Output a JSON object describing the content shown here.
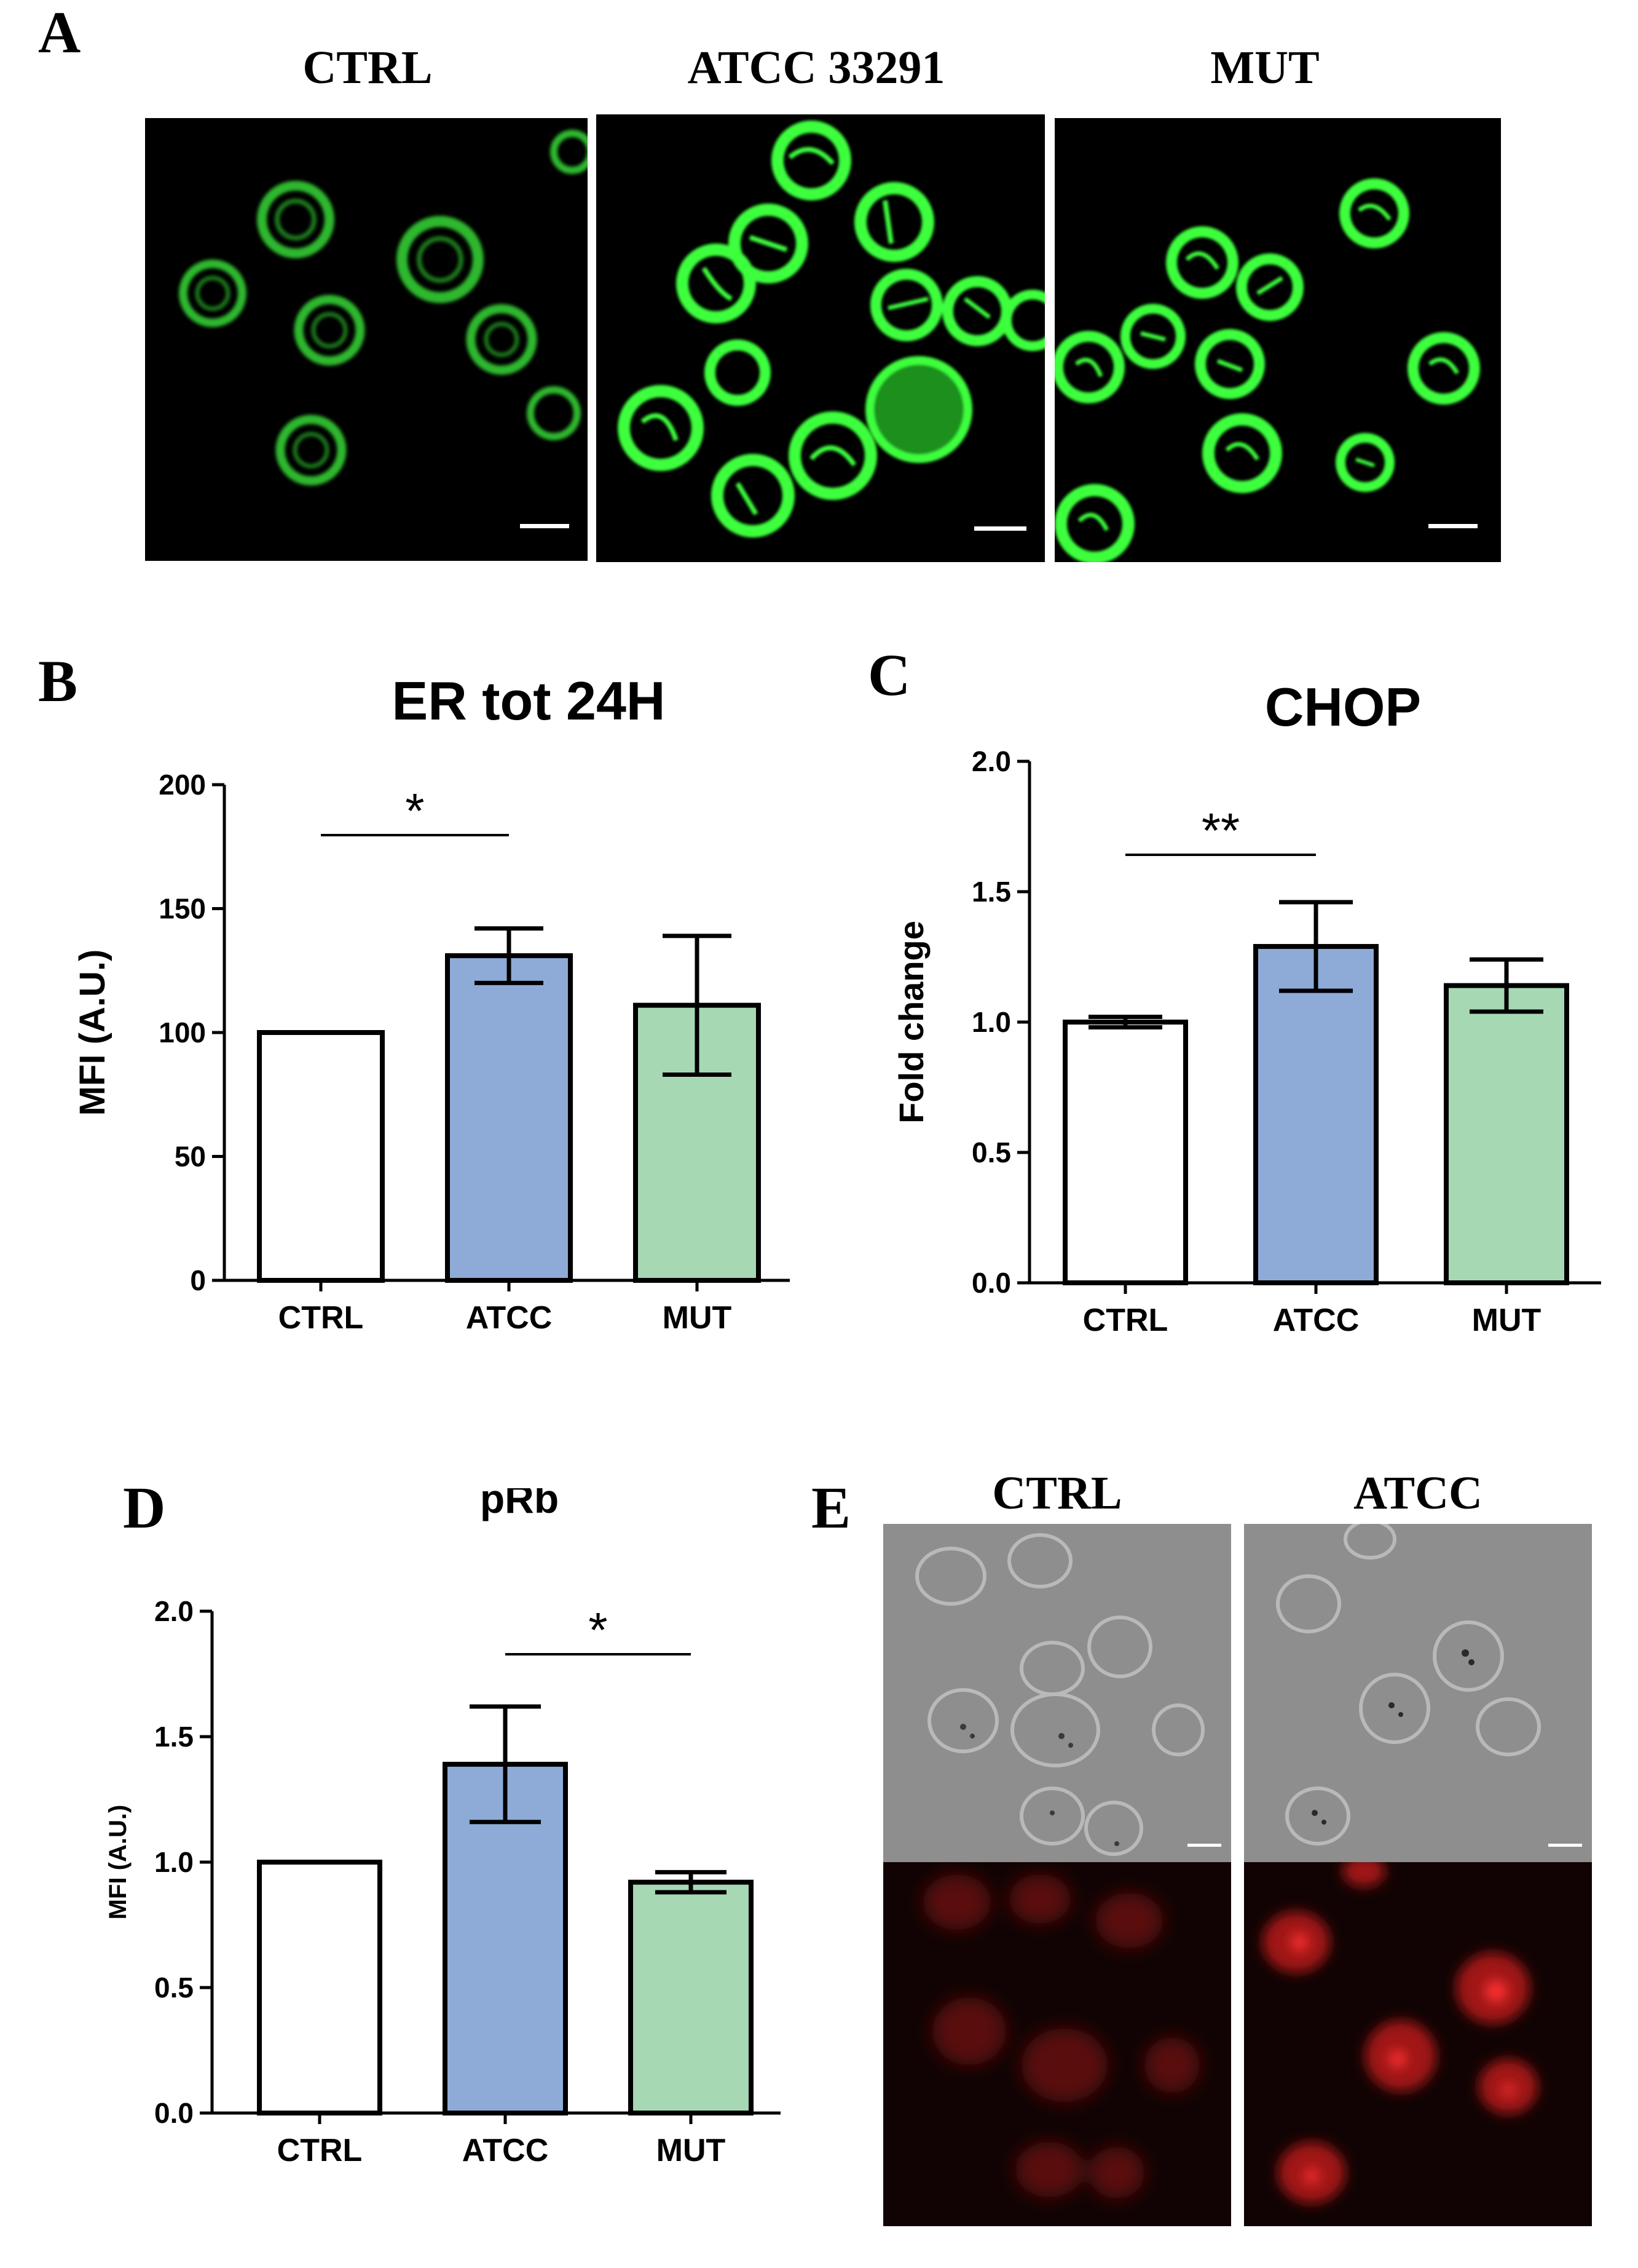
{
  "panel_letters": {
    "a": "A",
    "b": "B",
    "c": "C",
    "d": "D",
    "e": "E"
  },
  "panel_a": {
    "labels": [
      "CTRL",
      "ATCC 33291",
      "MUT"
    ],
    "stain_color": "#3cff3c",
    "background_color": "#000000"
  },
  "panel_e": {
    "labels": [
      "CTRL",
      "ATCC"
    ],
    "brightfield_color": "#8e8e8e",
    "fluorescence_color": "#c01010"
  },
  "colors": {
    "ctrl": "#ffffff",
    "atcc": "#8eabd8",
    "mut": "#a6d8b4",
    "stroke": "#000000"
  },
  "chart_data": [
    {
      "id": "B",
      "type": "bar",
      "title": "ER tot 24H",
      "ylabel": "MFI (A.U.)",
      "categories": [
        "CTRL",
        "ATCC",
        "MUT"
      ],
      "values": [
        100,
        131,
        111
      ],
      "errors": [
        0,
        11,
        28
      ],
      "ylim": [
        0,
        200
      ],
      "yticks": [
        0,
        50,
        100,
        150,
        200
      ],
      "significance": [
        {
          "from": 0,
          "to": 1,
          "label": "*"
        }
      ]
    },
    {
      "id": "C",
      "type": "bar",
      "title": "CHOP",
      "ylabel": "Fold change",
      "categories": [
        "CTRL",
        "ATCC",
        "MUT"
      ],
      "values": [
        1.0,
        1.29,
        1.14
      ],
      "errors": [
        0.02,
        0.17,
        0.1
      ],
      "ylim": [
        0,
        2.0
      ],
      "yticks": [
        0.0,
        0.5,
        1.0,
        1.5,
        2.0
      ],
      "significance": [
        {
          "from": 0,
          "to": 1,
          "label": "**"
        }
      ]
    },
    {
      "id": "D",
      "type": "bar",
      "title": "pRb",
      "ylabel": "MFI (A.U.)",
      "categories": [
        "CTRL",
        "ATCC",
        "MUT"
      ],
      "values": [
        1.0,
        1.39,
        0.92
      ],
      "errors": [
        0,
        0.23,
        0.04
      ],
      "ylim": [
        0,
        2.0
      ],
      "yticks": [
        0.0,
        0.5,
        1.0,
        1.5,
        2.0
      ],
      "significance": [
        {
          "from": 1,
          "to": 2,
          "label": "*"
        }
      ]
    }
  ]
}
